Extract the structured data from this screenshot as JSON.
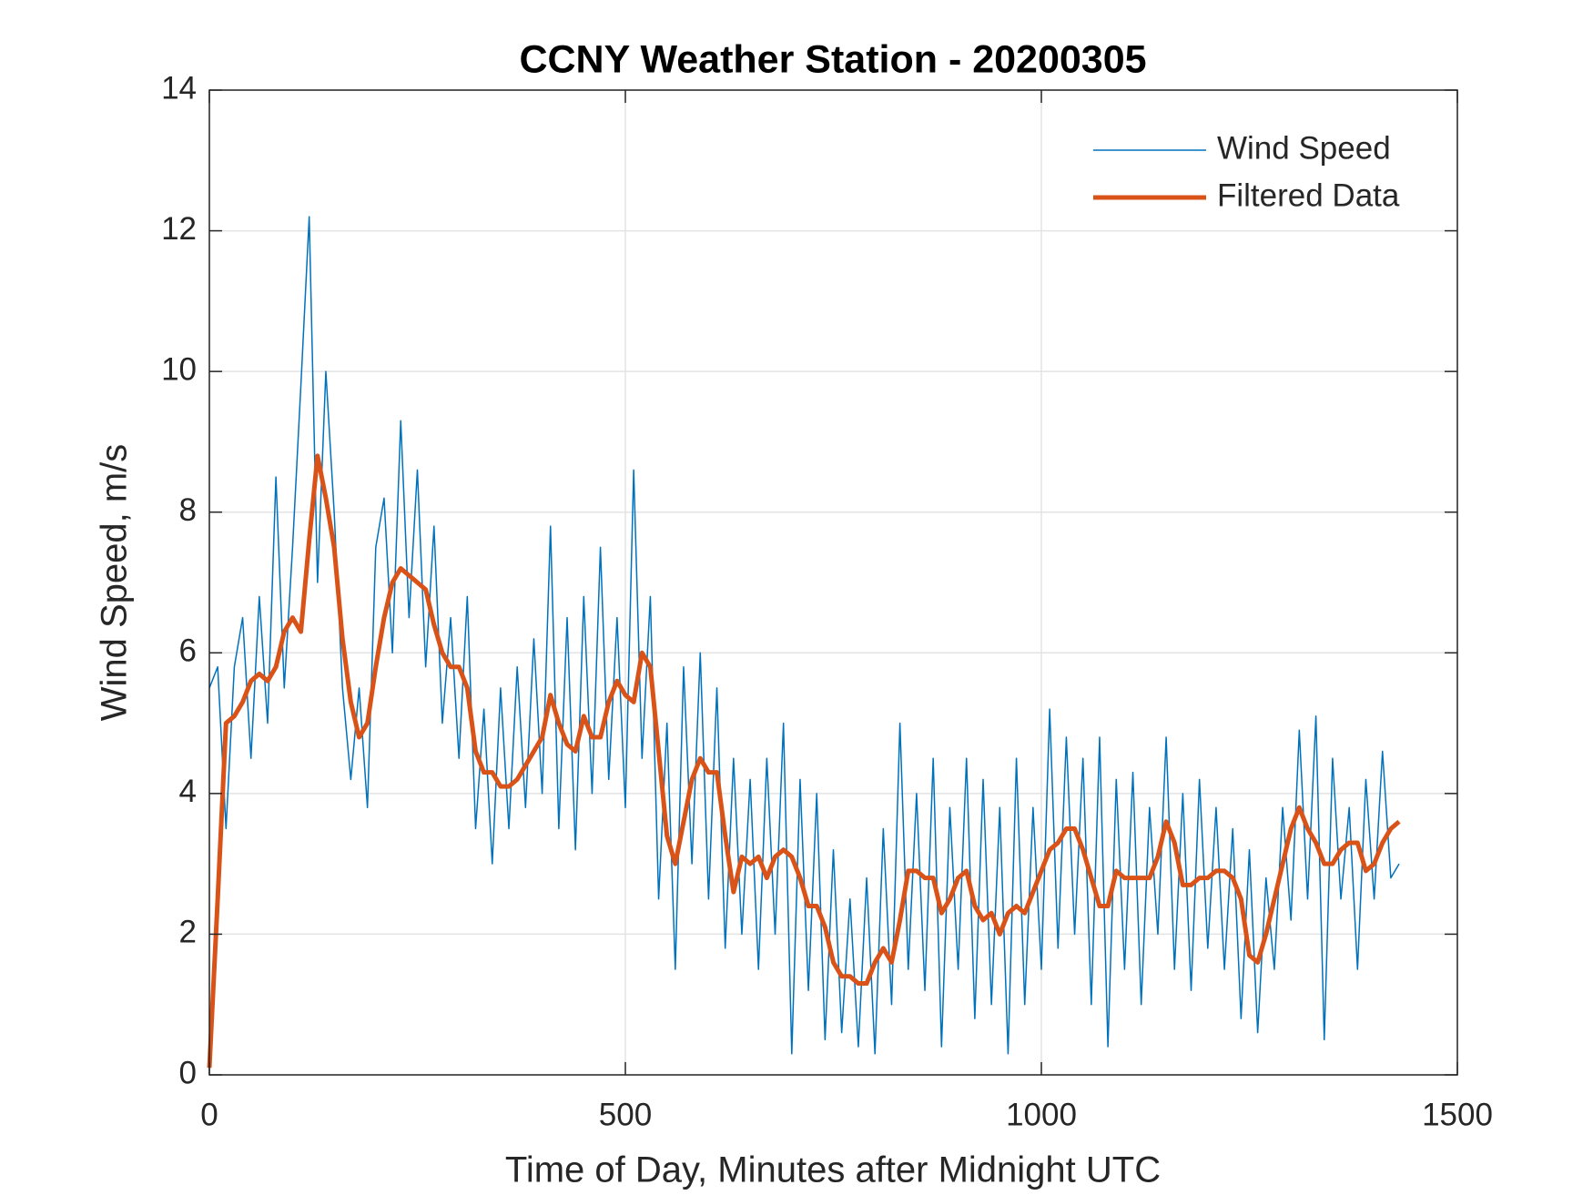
{
  "chart_data": {
    "type": "line",
    "title": "CCNY Weather Station - 20200305",
    "xlabel": "Time of Day, Minutes after Midnight UTC",
    "ylabel": "Wind Speed, m/s",
    "x": [
      0,
      10,
      20,
      30,
      40,
      50,
      60,
      70,
      80,
      90,
      100,
      110,
      120,
      130,
      140,
      150,
      160,
      170,
      180,
      190,
      200,
      210,
      220,
      230,
      240,
      250,
      260,
      270,
      280,
      290,
      300,
      310,
      320,
      330,
      340,
      350,
      360,
      370,
      380,
      390,
      400,
      410,
      420,
      430,
      440,
      450,
      460,
      470,
      480,
      490,
      500,
      510,
      520,
      530,
      540,
      550,
      560,
      570,
      580,
      590,
      600,
      610,
      620,
      630,
      640,
      650,
      660,
      670,
      680,
      690,
      700,
      710,
      720,
      730,
      740,
      750,
      760,
      770,
      780,
      790,
      800,
      810,
      820,
      830,
      840,
      850,
      860,
      870,
      880,
      890,
      900,
      910,
      920,
      930,
      940,
      950,
      960,
      970,
      980,
      990,
      1000,
      1010,
      1020,
      1030,
      1040,
      1050,
      1060,
      1070,
      1080,
      1090,
      1100,
      1110,
      1120,
      1130,
      1140,
      1150,
      1160,
      1170,
      1180,
      1190,
      1200,
      1210,
      1220,
      1230,
      1240,
      1250,
      1260,
      1270,
      1280,
      1290,
      1300,
      1310,
      1320,
      1330,
      1340,
      1350,
      1360,
      1370,
      1380,
      1390,
      1400,
      1410,
      1420,
      1430
    ],
    "series": [
      {
        "name": "Wind Speed",
        "color": "#0072bd",
        "width": 1.5,
        "values": [
          5.5,
          5.8,
          3.5,
          5.8,
          6.5,
          4.5,
          6.8,
          5.0,
          8.5,
          5.5,
          7.5,
          9.8,
          12.2,
          7.0,
          10.0,
          8.0,
          5.5,
          4.2,
          5.5,
          3.8,
          7.5,
          8.2,
          6.0,
          9.3,
          6.5,
          8.6,
          5.8,
          7.8,
          5.0,
          6.5,
          4.5,
          6.8,
          3.5,
          5.2,
          3.0,
          5.5,
          3.5,
          5.8,
          3.8,
          6.2,
          4.0,
          7.8,
          3.5,
          6.5,
          3.2,
          6.8,
          4.0,
          7.5,
          4.2,
          6.5,
          3.8,
          8.6,
          4.5,
          6.8,
          2.5,
          5.0,
          1.5,
          5.8,
          3.0,
          6.0,
          2.5,
          5.5,
          1.8,
          4.5,
          2.0,
          4.2,
          1.5,
          4.5,
          2.0,
          5.0,
          0.3,
          4.2,
          1.2,
          4.0,
          0.5,
          3.2,
          0.6,
          2.5,
          0.4,
          2.8,
          0.3,
          3.5,
          1.0,
          5.0,
          1.5,
          4.0,
          1.2,
          4.5,
          0.4,
          3.8,
          1.5,
          4.5,
          0.8,
          4.2,
          1.0,
          3.8,
          0.3,
          4.5,
          1.0,
          3.8,
          1.5,
          5.2,
          1.8,
          4.8,
          2.0,
          4.5,
          1.0,
          4.8,
          0.4,
          4.2,
          1.5,
          4.3,
          1.0,
          3.8,
          2.0,
          4.8,
          1.5,
          4.0,
          1.2,
          4.2,
          1.8,
          3.8,
          1.5,
          3.5,
          0.8,
          3.2,
          0.6,
          2.8,
          1.5,
          3.8,
          2.2,
          4.9,
          2.5,
          5.1,
          0.5,
          4.5,
          2.5,
          3.8,
          1.5,
          4.2,
          2.5,
          4.6,
          2.8,
          3.0
        ]
      },
      {
        "name": "Filtered Data",
        "color": "#d95319",
        "width": 5,
        "values": [
          0.1,
          2.5,
          5.0,
          5.1,
          5.3,
          5.6,
          5.7,
          5.6,
          5.8,
          6.3,
          6.5,
          6.3,
          7.6,
          8.8,
          8.2,
          7.5,
          6.2,
          5.3,
          4.8,
          5.0,
          5.8,
          6.5,
          7.0,
          7.2,
          7.1,
          7.0,
          6.9,
          6.4,
          6.0,
          5.8,
          5.8,
          5.5,
          4.6,
          4.3,
          4.3,
          4.1,
          4.1,
          4.2,
          4.4,
          4.6,
          4.8,
          5.4,
          5.0,
          4.7,
          4.6,
          5.1,
          4.8,
          4.8,
          5.3,
          5.6,
          5.4,
          5.3,
          6.0,
          5.8,
          4.6,
          3.4,
          3.0,
          3.6,
          4.2,
          4.5,
          4.3,
          4.3,
          3.4,
          2.6,
          3.1,
          3.0,
          3.1,
          2.8,
          3.1,
          3.2,
          3.1,
          2.8,
          2.4,
          2.4,
          2.1,
          1.6,
          1.4,
          1.4,
          1.3,
          1.3,
          1.6,
          1.8,
          1.6,
          2.2,
          2.9,
          2.9,
          2.8,
          2.8,
          2.3,
          2.5,
          2.8,
          2.9,
          2.4,
          2.2,
          2.3,
          2.0,
          2.3,
          2.4,
          2.3,
          2.6,
          2.9,
          3.2,
          3.3,
          3.5,
          3.5,
          3.2,
          2.8,
          2.4,
          2.4,
          2.9,
          2.8,
          2.8,
          2.8,
          2.8,
          3.1,
          3.6,
          3.3,
          2.7,
          2.7,
          2.8,
          2.8,
          2.9,
          2.9,
          2.8,
          2.5,
          1.7,
          1.6,
          2.0,
          2.5,
          3.0,
          3.5,
          3.8,
          3.5,
          3.3,
          3.0,
          3.0,
          3.2,
          3.3,
          3.3,
          2.9,
          3.0,
          3.3,
          3.5,
          3.6
        ]
      }
    ],
    "xlim": [
      0,
      1500
    ],
    "xticks": [
      0,
      500,
      1000,
      1500
    ],
    "ylim": [
      0,
      14
    ],
    "yticks": [
      0,
      2,
      4,
      6,
      8,
      10,
      12,
      14
    ],
    "grid": true,
    "legend": "northeast"
  }
}
